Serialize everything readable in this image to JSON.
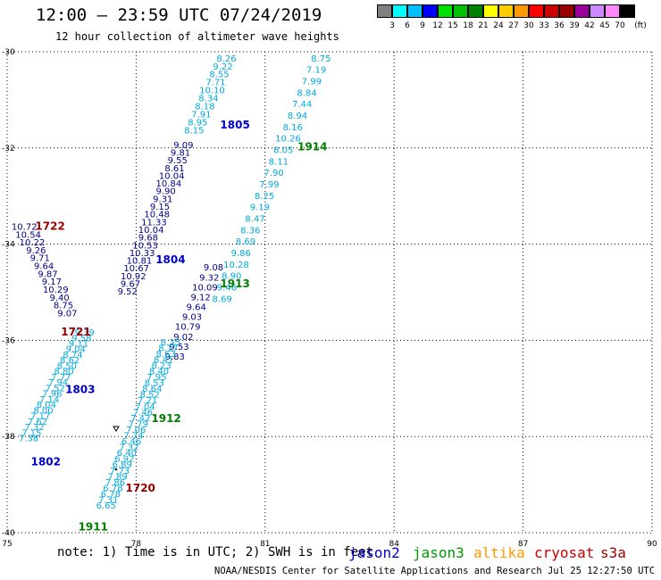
{
  "title": "12:00 — 23:59 UTC 07/24/2019",
  "subtitle": "12 hour collection of altimeter wave heights",
  "note": "note: 1) Time is in UTC; 2) SWH is in feet",
  "footer": "NOAA/NESDIS Center for Satellite Applications and Research  Jul 25 12:27:50 UTC 2019",
  "satellites": [
    {
      "name": "jason2",
      "color": "#0000cc"
    },
    {
      "name": "jason3",
      "color": "#009900"
    },
    {
      "name": "altika",
      "color": "#ff9900"
    },
    {
      "name": "cryosat",
      "color": "#cc0000"
    },
    {
      "name": "s3a",
      "color": "#990000"
    }
  ],
  "legend": {
    "unit": "(ft)",
    "colors": [
      "#808080",
      "#00ffff",
      "#00bfff",
      "#0000ff",
      "#00e000",
      "#00c000",
      "#008000",
      "#ffff00",
      "#ffcc00",
      "#ff9900",
      "#ff0000",
      "#cc0000",
      "#990000",
      "#990099",
      "#cc88ff",
      "#ff88ff",
      "#000000"
    ],
    "labels": [
      "3",
      "6",
      "9",
      "12",
      "15",
      "18",
      "21",
      "24",
      "27",
      "30",
      "33",
      "36",
      "39",
      "42",
      "45",
      "70"
    ]
  },
  "map": {
    "lon_range": [
      75,
      90
    ],
    "lat_range": [
      -40,
      -30
    ],
    "lon_ticks": [
      75,
      78,
      81,
      84,
      87,
      90
    ],
    "lat_ticks": [
      -30,
      -32,
      -34,
      -36,
      -38,
      -40
    ],
    "lon_tick_labels": [
      "75",
      "78",
      "81",
      "84",
      "87",
      "90"
    ],
    "lat_tick_labels": [
      "-30",
      "-32",
      "-34",
      "-36",
      "-38",
      "-40"
    ],
    "time_labels": [
      {
        "text": "1805",
        "lon": 80.3,
        "lat": -31.6,
        "color": "#0000cc"
      },
      {
        "text": "1804",
        "lon": 78.8,
        "lat": -34.4,
        "color": "#0000cc"
      },
      {
        "text": "1803",
        "lon": 76.7,
        "lat": -37.1,
        "color": "#0000cc"
      },
      {
        "text": "1802",
        "lon": 75.9,
        "lat": -38.6,
        "color": "#0000cc"
      },
      {
        "text": "1914",
        "lon": 82.1,
        "lat": -32.05,
        "color": "#008000"
      },
      {
        "text": "1913",
        "lon": 80.3,
        "lat": -34.9,
        "color": "#008000"
      },
      {
        "text": "1912",
        "lon": 78.7,
        "lat": -37.7,
        "color": "#008000"
      },
      {
        "text": "1911",
        "lon": 77.0,
        "lat": -39.95,
        "color": "#008000"
      },
      {
        "text": "1722",
        "lon": 76.0,
        "lat": -33.7,
        "color": "#990000"
      },
      {
        "text": "1721",
        "lon": 76.6,
        "lat": -35.9,
        "color": "#990000"
      },
      {
        "text": "1720",
        "lon": 78.1,
        "lat": -39.15,
        "color": "#990000"
      }
    ],
    "tracks": [
      {
        "name": "jason2-1805",
        "color": "#00aadd",
        "start": [
          80.1,
          -30.2
        ],
        "end": [
          79.35,
          -31.7
        ],
        "values": [
          "8.26",
          "9.22",
          "8.55",
          "7.71",
          "10.10",
          "8.34",
          "8.18",
          "7.91",
          "8.95",
          "8.15"
        ]
      },
      {
        "name": "jason2-1804",
        "color": "#00008b",
        "start": [
          79.1,
          -32.0
        ],
        "end": [
          77.8,
          -35.05
        ],
        "values": [
          "9.09",
          "9.81",
          "9.55",
          "8.61",
          "10.04",
          "10.84",
          "9.90",
          "9.31",
          "9.15",
          "10.48",
          "11.33",
          "10.04",
          "9.68",
          "10.53",
          "10.33",
          "10.81",
          "10.67",
          "10.92",
          "9.67",
          "9.52"
        ]
      },
      {
        "name": "cryosat-1722",
        "color": "#00008b",
        "start": [
          75.4,
          -33.7
        ],
        "end": [
          76.4,
          -35.5
        ],
        "values": [
          "10.72",
          "10.54",
          "10.22",
          "9.26",
          "9.71",
          "9.64",
          "9.87",
          "9.17",
          "10.29",
          "9.40",
          "8.75",
          "9.07"
        ]
      },
      {
        "name": "jason2-1803",
        "color": "#00aadd",
        "start": [
          76.8,
          -35.9
        ],
        "end": [
          75.5,
          -38.1
        ],
        "values": [
          "9.39",
          "9.58",
          "9.11",
          "9.04",
          "8.74",
          "8.62",
          "8.50",
          "8.80",
          "7.77",
          "7.94",
          "7.52",
          "7.96",
          "7.14",
          "8.04",
          "8.00",
          "7.17",
          "7.62",
          "7.32",
          "7.15",
          "7.38"
        ]
      },
      {
        "name": "jason3-1914",
        "color": "#00aadd",
        "start": [
          82.3,
          -30.2
        ],
        "end": [
          80.0,
          -35.2
        ],
        "values": [
          "8.75",
          "7.19",
          "7.99",
          "8.84",
          "7.44",
          "8.94",
          "8.16",
          "10.26",
          "8.05",
          "8.11",
          "7.90",
          "7.99",
          "8.25",
          "9.19",
          "8.47",
          "8.36",
          "8.69",
          "9.86",
          "10.28",
          "8.90",
          "9.46",
          "8.69"
        ]
      },
      {
        "name": "jason3-1913",
        "color": "#00008b",
        "start": [
          79.8,
          -34.55
        ],
        "end": [
          78.9,
          -36.4
        ],
        "values": [
          "9.08",
          "9.32",
          "10.09",
          "9.12",
          "9.64",
          "9.03",
          "10.79",
          "9.02",
          "9.53",
          "9.83"
        ]
      },
      {
        "name": "jason3-1912",
        "color": "#00aadd",
        "start": [
          78.8,
          -36.1
        ],
        "end": [
          77.3,
          -39.5
        ],
        "values": [
          "8.35",
          "8.17",
          "8.63",
          "8.41",
          "8.23",
          "8.40",
          "7.95",
          "8.53",
          "8.64",
          "8.52",
          "7.21",
          "7.04",
          "7.46",
          "7.42",
          "7.79",
          "7.06",
          "7.74",
          "6.46",
          "7.32",
          "6.40",
          "6.92",
          "6.89",
          "7.73",
          "7.89",
          "7.86",
          "6.78",
          "6.78",
          "7.31",
          "6.65"
        ]
      }
    ]
  }
}
